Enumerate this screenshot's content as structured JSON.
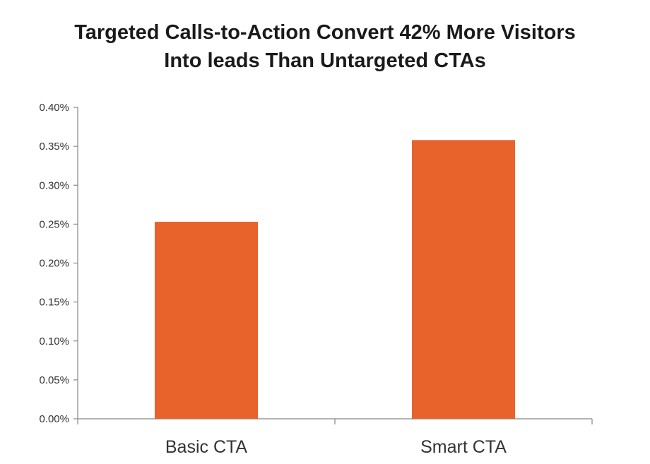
{
  "chart_data": {
    "type": "bar",
    "title": "Targeted Calls-to-Action Convert 42% More Visitors Into leads Than Untargeted CTAs",
    "title_lines": [
      "Targeted Calls-to-Action Convert 42% More Visitors",
      "Into leads Than Untargeted CTAs"
    ],
    "categories": [
      "Basic CTA",
      "Smart CTA"
    ],
    "values": [
      0.253,
      0.358
    ],
    "value_unit": "%",
    "ylim": [
      0,
      0.4
    ],
    "yticks": [
      0.0,
      0.05,
      0.1,
      0.15,
      0.2,
      0.25,
      0.3,
      0.35,
      0.4
    ],
    "ytick_labels": [
      "0.00%",
      "0.05%",
      "0.10%",
      "0.15%",
      "0.20%",
      "0.25%",
      "0.30%",
      "0.35%",
      "0.40%"
    ],
    "xlabel": "",
    "ylabel": "",
    "grid": false,
    "bar_color": "#E8632B",
    "axis_color": "#888888"
  }
}
